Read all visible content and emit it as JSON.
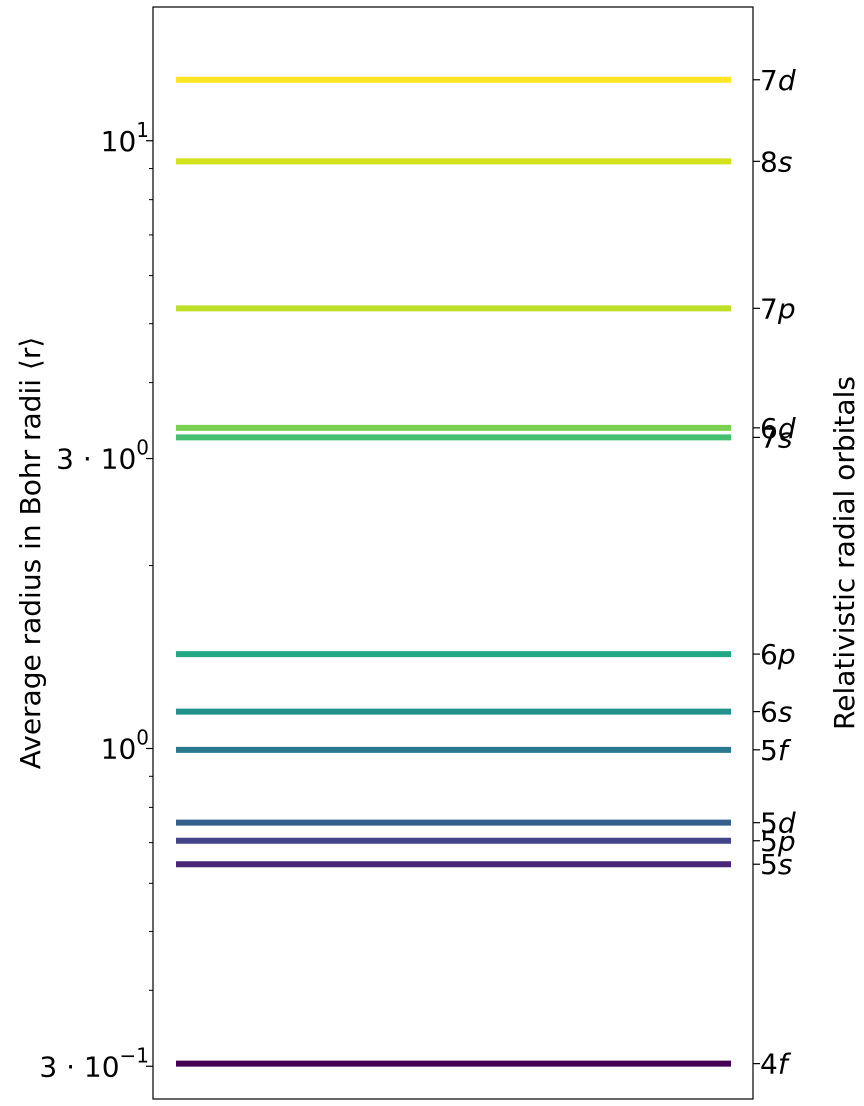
{
  "chart_data": {
    "type": "line",
    "title": "",
    "ylabel": "Average radius in Bohr radii ⟨r⟩",
    "ylabel_right": "Relativistic radial orbitals",
    "yscale": "log",
    "ylim": [
      0.265,
      16.6
    ],
    "grid": false,
    "yticks": [
      {
        "value": 10,
        "base": "10",
        "exp": "1"
      },
      {
        "value": 3,
        "base": "3 · 10",
        "exp": "0"
      },
      {
        "value": 1,
        "base": "10",
        "exp": "0"
      },
      {
        "value": 0.3,
        "base": "3 · 10",
        "exp": "−1"
      }
    ],
    "series": [
      {
        "name": "4f",
        "n": "4",
        "l": "f",
        "value": 0.303,
        "color": "#440154"
      },
      {
        "name": "5s",
        "n": "5",
        "l": "s",
        "value": 0.645,
        "color": "#482576"
      },
      {
        "name": "5p",
        "n": "5",
        "l": "p",
        "value": 0.705,
        "color": "#414487"
      },
      {
        "name": "5d",
        "n": "5",
        "l": "d",
        "value": 0.755,
        "color": "#35608d"
      },
      {
        "name": "5f",
        "n": "5",
        "l": "f",
        "value": 0.995,
        "color": "#2a788e"
      },
      {
        "name": "6s",
        "n": "6",
        "l": "s",
        "value": 1.15,
        "color": "#21918c"
      },
      {
        "name": "6p",
        "n": "6",
        "l": "p",
        "value": 1.43,
        "color": "#22a884"
      },
      {
        "name": "7s",
        "n": "7",
        "l": "s",
        "value": 3.25,
        "color": "#44bf70"
      },
      {
        "name": "6d",
        "n": "6",
        "l": "d",
        "value": 3.37,
        "color": "#7ad151"
      },
      {
        "name": "7p",
        "n": "7",
        "l": "p",
        "value": 5.3,
        "color": "#bddf26"
      },
      {
        "name": "8s",
        "n": "8",
        "l": "s",
        "value": 9.25,
        "color": "#d2e21b"
      },
      {
        "name": "7d",
        "n": "7",
        "l": "d",
        "value": 12.6,
        "color": "#fde725"
      }
    ]
  }
}
